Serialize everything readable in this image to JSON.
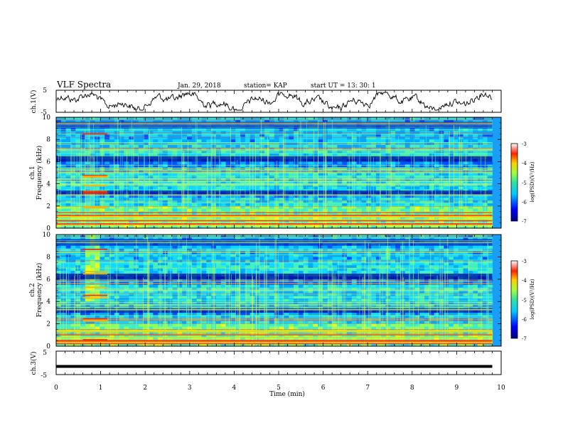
{
  "header": {
    "title": "VLF Spectra",
    "date": "Jan. 29, 2018",
    "station": "station= KAP",
    "start": "start  UT =  13: 30: 1"
  },
  "chart_data": {
    "type": "heatmap",
    "xlabel": "Time  (min)",
    "xlim": [
      0,
      10
    ],
    "x_ticks": [
      "0",
      "1",
      "2",
      "3",
      "4",
      "5",
      "6",
      "7",
      "8",
      "9",
      "10"
    ],
    "panels": [
      {
        "name": "ch1_waveform",
        "type": "line",
        "ylabel": "ch.1(V)",
        "ylim": [
          -5,
          5
        ],
        "y_ticks": [
          "5",
          "-5"
        ]
      },
      {
        "name": "ch1_spectrogram",
        "type": "heatmap",
        "ylabel_top": "ch.1",
        "ylabel": "Frequency  (kHz)",
        "ylim": [
          0,
          10
        ],
        "y_ticks": [
          "0",
          "2",
          "4",
          "6",
          "8",
          "10"
        ],
        "colorbar": {
          "label": "log(PSD)(V²/Hz)",
          "range": [
            -7,
            -3
          ],
          "ticks": [
            "-3",
            "-4",
            "-5",
            "-6",
            "-7"
          ]
        }
      },
      {
        "name": "ch2_spectrogram",
        "type": "heatmap",
        "ylabel_top": "ch.2",
        "ylabel": "Frequency  (kHz)",
        "ylim": [
          0,
          10
        ],
        "y_ticks": [
          "0",
          "2",
          "4",
          "6",
          "8",
          "10"
        ],
        "colorbar": {
          "label": "log(PSD)(V²/Hz)",
          "range": [
            -7,
            -3
          ],
          "ticks": [
            "-3",
            "-4",
            "-5",
            "-6",
            "-7"
          ]
        }
      },
      {
        "name": "ch3_waveform",
        "type": "line",
        "ylabel": "ch.3(V)",
        "ylim": [
          -5,
          5
        ],
        "y_ticks": [
          "5",
          "-5"
        ],
        "flat_value": -1.5
      }
    ]
  }
}
